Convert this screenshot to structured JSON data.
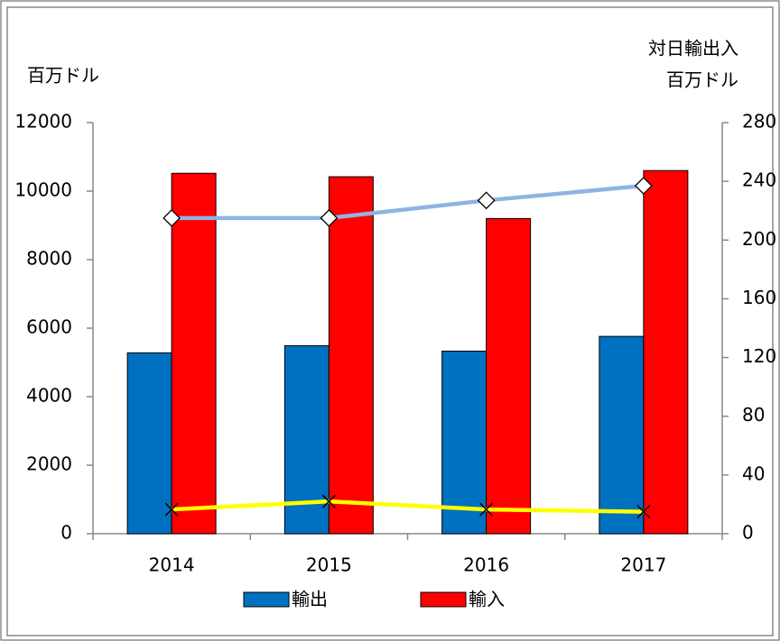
{
  "chart_data": {
    "type": "bar",
    "categories": [
      "2014",
      "2015",
      "2016",
      "2017"
    ],
    "series": [
      {
        "name": "輸出",
        "color": "#0070c0",
        "values": [
          5280,
          5490,
          5330,
          5760
        ]
      },
      {
        "name": "輸入",
        "color": "#ff0000",
        "values": [
          10520,
          10420,
          9200,
          10600
        ]
      },
      {
        "type": "line",
        "axis": "y2",
        "color": "#8eb4e3",
        "marker": "diamond",
        "values": [
          215,
          215,
          227,
          237
        ]
      },
      {
        "type": "line",
        "axis": "y2",
        "color": "#ffff00",
        "marker": "x",
        "values": [
          16.5,
          22,
          16.5,
          15
        ]
      }
    ],
    "ylabel": "百万ドル",
    "y2label": [
      "対日輸出入",
      "百万ドル"
    ],
    "ylim": [
      0,
      12000
    ],
    "yticks": [
      0,
      2000,
      4000,
      6000,
      8000,
      10000,
      12000
    ],
    "y2lim": [
      0,
      280
    ],
    "y2ticks": [
      0,
      40,
      80,
      120,
      160,
      200,
      240,
      280
    ],
    "grid": false,
    "legend": "bottom"
  }
}
